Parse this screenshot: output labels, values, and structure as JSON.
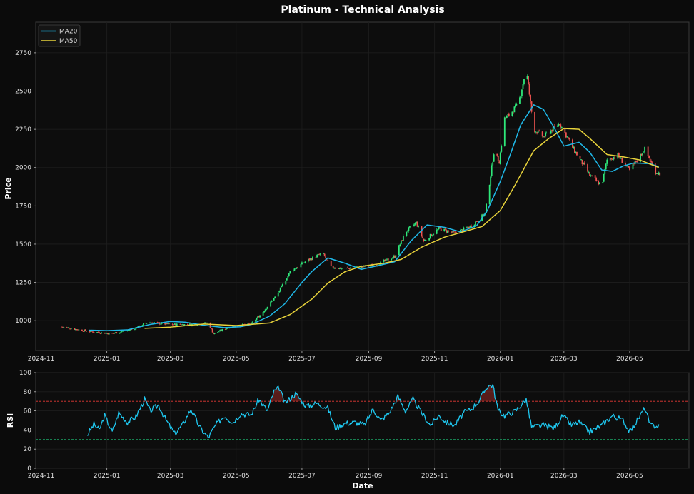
{
  "chart_data": [
    {
      "type": "candlestick",
      "title": "Platinum - Technical Analysis",
      "xlabel": "",
      "ylabel": "Price",
      "ylim": [
        805,
        2950
      ],
      "xlim": [
        "2024-10-27",
        "2026-06-25"
      ],
      "x_ticks": [
        "2024-11",
        "2025-01",
        "2025-03",
        "2025-05",
        "2025-07",
        "2025-09",
        "2025-11",
        "2026-01",
        "2026-03",
        "2026-05"
      ],
      "y_ticks": [
        1000,
        1250,
        1500,
        1750,
        2000,
        2250,
        2500,
        2750
      ],
      "grid": true,
      "legend_position": "top-left",
      "up_color": "#2ee87a",
      "down_color": "#ef5350",
      "price_anchors": [
        [
          "2024-11-20",
          960
        ],
        [
          "2024-12-15",
          930
        ],
        [
          "2025-01-05",
          915
        ],
        [
          "2025-01-25",
          945
        ],
        [
          "2025-02-08",
          990
        ],
        [
          "2025-03-01",
          975
        ],
        [
          "2025-03-20",
          975
        ],
        [
          "2025-04-05",
          985
        ],
        [
          "2025-04-10",
          915
        ],
        [
          "2025-04-25",
          960
        ],
        [
          "2025-05-15",
          980
        ],
        [
          "2025-05-25",
          1050
        ],
        [
          "2025-06-08",
          1170
        ],
        [
          "2025-06-20",
          1320
        ],
        [
          "2025-07-05",
          1390
        ],
        [
          "2025-07-20",
          1440
        ],
        [
          "2025-07-28",
          1350
        ],
        [
          "2025-08-10",
          1340
        ],
        [
          "2025-08-25",
          1350
        ],
        [
          "2025-09-10",
          1370
        ],
        [
          "2025-09-25",
          1420
        ],
        [
          "2025-10-05",
          1580
        ],
        [
          "2025-10-15",
          1640
        ],
        [
          "2025-10-22",
          1520
        ],
        [
          "2025-11-05",
          1600
        ],
        [
          "2025-11-20",
          1570
        ],
        [
          "2025-12-05",
          1620
        ],
        [
          "2025-12-18",
          1700
        ],
        [
          "2025-12-26",
          2100
        ],
        [
          "2025-12-31",
          2040
        ],
        [
          "2026-01-05",
          2320
        ],
        [
          "2026-01-10",
          2350
        ],
        [
          "2026-01-18",
          2420
        ],
        [
          "2026-01-25",
          2650
        ],
        [
          "2026-02-01",
          2250
        ],
        [
          "2026-02-10",
          2200
        ],
        [
          "2026-02-25",
          2290
        ],
        [
          "2026-03-10",
          2120
        ],
        [
          "2026-03-25",
          1950
        ],
        [
          "2026-04-05",
          1880
        ],
        [
          "2026-04-10",
          2050
        ],
        [
          "2026-04-20",
          2080
        ],
        [
          "2026-05-01",
          1980
        ],
        [
          "2026-05-15",
          2120
        ],
        [
          "2026-05-25",
          1970
        ],
        [
          "2026-05-30",
          1960
        ]
      ],
      "series": [
        {
          "name": "MA20",
          "color": "#1fb8e8",
          "points": [
            [
              "2024-12-15",
              938
            ],
            [
              "2025-01-01",
              935
            ],
            [
              "2025-01-20",
              940
            ],
            [
              "2025-02-10",
              975
            ],
            [
              "2025-03-01",
              995
            ],
            [
              "2025-03-15",
              990
            ],
            [
              "2025-04-01",
              970
            ],
            [
              "2025-04-20",
              955
            ],
            [
              "2025-05-05",
              960
            ],
            [
              "2025-05-15",
              975
            ],
            [
              "2025-06-01",
              1030
            ],
            [
              "2025-06-15",
              1110
            ],
            [
              "2025-07-01",
              1250
            ],
            [
              "2025-07-10",
              1320
            ],
            [
              "2025-07-25",
              1410
            ],
            [
              "2025-08-10",
              1375
            ],
            [
              "2025-08-25",
              1335
            ],
            [
              "2025-09-10",
              1360
            ],
            [
              "2025-09-25",
              1385
            ],
            [
              "2025-10-10",
              1520
            ],
            [
              "2025-10-25",
              1625
            ],
            [
              "2025-11-10",
              1610
            ],
            [
              "2025-11-25",
              1580
            ],
            [
              "2025-12-10",
              1620
            ],
            [
              "2025-12-20",
              1720
            ],
            [
              "2026-01-01",
              1910
            ],
            [
              "2026-01-10",
              2080
            ],
            [
              "2026-01-20",
              2280
            ],
            [
              "2026-02-01",
              2410
            ],
            [
              "2026-02-10",
              2380
            ],
            [
              "2026-02-20",
              2260
            ],
            [
              "2026-03-01",
              2140
            ],
            [
              "2026-03-15",
              2165
            ],
            [
              "2026-03-25",
              2100
            ],
            [
              "2026-04-05",
              1985
            ],
            [
              "2026-04-15",
              1975
            ],
            [
              "2026-04-25",
              2010
            ],
            [
              "2026-05-05",
              2030
            ],
            [
              "2026-05-20",
              2025
            ],
            [
              "2026-05-28",
              2005
            ]
          ]
        },
        {
          "name": "MA50",
          "color": "#e8d33b",
          "points": [
            [
              "2025-02-05",
              950
            ],
            [
              "2025-03-01",
              958
            ],
            [
              "2025-04-01",
              978
            ],
            [
              "2025-05-01",
              968
            ],
            [
              "2025-06-01",
              985
            ],
            [
              "2025-06-20",
              1040
            ],
            [
              "2025-07-10",
              1140
            ],
            [
              "2025-07-25",
              1245
            ],
            [
              "2025-08-10",
              1320
            ],
            [
              "2025-08-25",
              1355
            ],
            [
              "2025-09-15",
              1375
            ],
            [
              "2025-10-01",
              1400
            ],
            [
              "2025-10-20",
              1480
            ],
            [
              "2025-11-10",
              1545
            ],
            [
              "2025-11-25",
              1575
            ],
            [
              "2025-12-15",
              1615
            ],
            [
              "2026-01-01",
              1720
            ],
            [
              "2026-01-15",
              1890
            ],
            [
              "2026-02-01",
              2110
            ],
            [
              "2026-02-15",
              2190
            ],
            [
              "2026-03-01",
              2255
            ],
            [
              "2026-03-15",
              2250
            ],
            [
              "2026-03-25",
              2190
            ],
            [
              "2026-04-10",
              2085
            ],
            [
              "2026-04-25",
              2070
            ],
            [
              "2026-05-10",
              2050
            ],
            [
              "2026-05-28",
              2000
            ]
          ]
        }
      ]
    },
    {
      "type": "line",
      "title": "",
      "xlabel": "Date",
      "ylabel": "RSI",
      "ylim": [
        0,
        100
      ],
      "xlim": [
        "2024-10-27",
        "2026-06-25"
      ],
      "x_ticks": [
        "2024-11",
        "2025-01",
        "2025-03",
        "2025-05",
        "2025-07",
        "2025-09",
        "2025-11",
        "2026-01",
        "2026-03",
        "2026-05"
      ],
      "y_ticks": [
        0,
        20,
        40,
        60,
        80,
        100
      ],
      "grid": true,
      "reference_lines": [
        {
          "value": 70,
          "color": "#e53935"
        },
        {
          "value": 30,
          "color": "#1ec47a"
        }
      ],
      "overbought_fill_color": "#e53935",
      "series": [
        {
          "name": "RSI",
          "color": "#1fc8f0",
          "anchors": [
            [
              "2024-12-14",
              35
            ],
            [
              "2024-12-20",
              46
            ],
            [
              "2024-12-25",
              40
            ],
            [
              "2024-12-30",
              55
            ],
            [
              "2025-01-06",
              38
            ],
            [
              "2025-01-12",
              58
            ],
            [
              "2025-01-20",
              48
            ],
            [
              "2025-01-28",
              54
            ],
            [
              "2025-02-05",
              72
            ],
            [
              "2025-02-10",
              60
            ],
            [
              "2025-02-18",
              66
            ],
            [
              "2025-02-25",
              50
            ],
            [
              "2025-03-05",
              36
            ],
            [
              "2025-03-12",
              45
            ],
            [
              "2025-03-20",
              62
            ],
            [
              "2025-03-28",
              43
            ],
            [
              "2025-04-05",
              32
            ],
            [
              "2025-04-12",
              45
            ],
            [
              "2025-04-20",
              55
            ],
            [
              "2025-04-28",
              48
            ],
            [
              "2025-05-05",
              57
            ],
            [
              "2025-05-15",
              56
            ],
            [
              "2025-05-22",
              72
            ],
            [
              "2025-05-30",
              60
            ],
            [
              "2025-06-05",
              80
            ],
            [
              "2025-06-10",
              84
            ],
            [
              "2025-06-15",
              68
            ],
            [
              "2025-06-25",
              78
            ],
            [
              "2025-07-05",
              65
            ],
            [
              "2025-07-15",
              68
            ],
            [
              "2025-07-25",
              63
            ],
            [
              "2025-08-01",
              42
            ],
            [
              "2025-08-10",
              47
            ],
            [
              "2025-08-20",
              48
            ],
            [
              "2025-08-28",
              45
            ],
            [
              "2025-09-05",
              62
            ],
            [
              "2025-09-12",
              50
            ],
            [
              "2025-09-20",
              58
            ],
            [
              "2025-09-28",
              75
            ],
            [
              "2025-10-05",
              60
            ],
            [
              "2025-10-12",
              72
            ],
            [
              "2025-10-20",
              58
            ],
            [
              "2025-10-28",
              45
            ],
            [
              "2025-11-05",
              55
            ],
            [
              "2025-11-12",
              48
            ],
            [
              "2025-11-20",
              45
            ],
            [
              "2025-11-28",
              58
            ],
            [
              "2025-12-05",
              62
            ],
            [
              "2025-12-12",
              70
            ],
            [
              "2025-12-20",
              86
            ],
            [
              "2025-12-25",
              87
            ],
            [
              "2025-12-30",
              60
            ],
            [
              "2026-01-05",
              55
            ],
            [
              "2026-01-15",
              60
            ],
            [
              "2026-01-25",
              72
            ],
            [
              "2026-01-30",
              43
            ],
            [
              "2026-02-10",
              45
            ],
            [
              "2026-02-20",
              42
            ],
            [
              "2026-02-28",
              55
            ],
            [
              "2026-03-08",
              45
            ],
            [
              "2026-03-15",
              48
            ],
            [
              "2026-03-25",
              38
            ],
            [
              "2026-04-05",
              45
            ],
            [
              "2026-04-15",
              55
            ],
            [
              "2026-04-25",
              50
            ],
            [
              "2026-05-01",
              38
            ],
            [
              "2026-05-08",
              50
            ],
            [
              "2026-05-15",
              63
            ],
            [
              "2026-05-20",
              45
            ],
            [
              "2026-05-28",
              44
            ]
          ]
        }
      ]
    }
  ],
  "legend": {
    "ma20": "MA20",
    "ma50": "MA50"
  }
}
